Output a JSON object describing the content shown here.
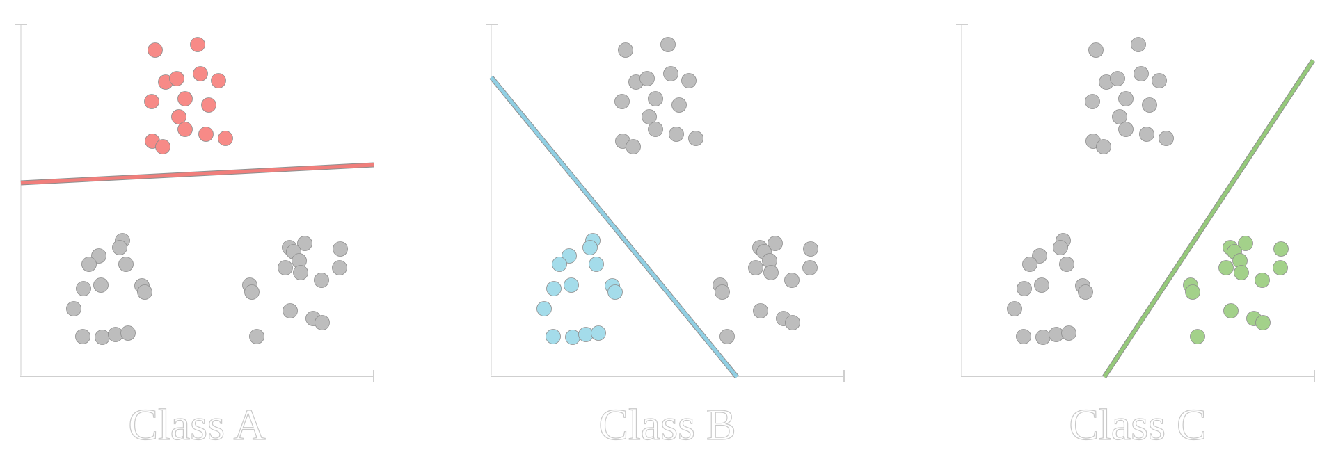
{
  "panels": [
    {
      "label": "Class A",
      "highlight_group": "top",
      "highlight_color": "#f78a87",
      "line_color": "#f07e7b"
    },
    {
      "label": "Class B",
      "highlight_group": "left",
      "highlight_color": "#a4dcea",
      "line_color": "#90cfe3"
    },
    {
      "label": "Class C",
      "highlight_group": "right",
      "highlight_color": "#a3d18a",
      "line_color": "#95c97a"
    }
  ],
  "colors": {
    "background": "#ffffff",
    "gray_point": "#bdbdbd",
    "axis": "#cfcfcf"
  }
}
